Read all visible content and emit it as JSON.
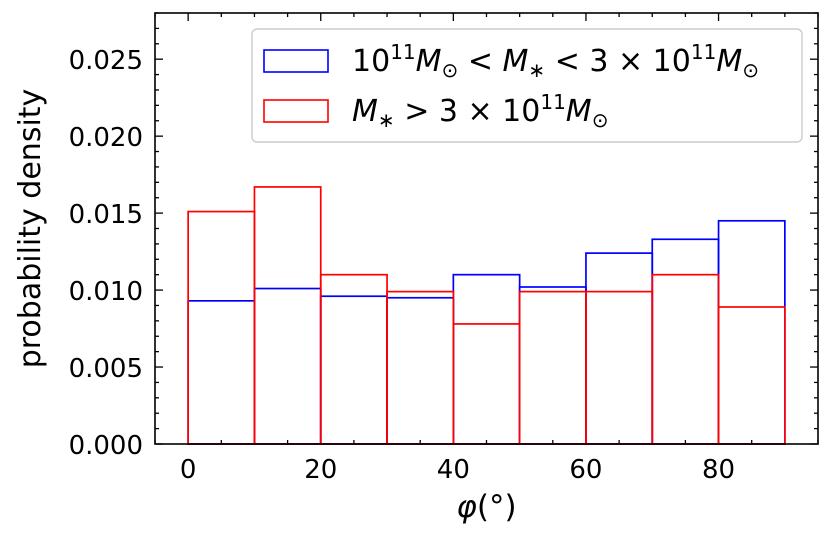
{
  "chart_data": {
    "type": "bar",
    "title": "",
    "xlabel": "φ(°)",
    "ylabel": "probability density",
    "xlim": [
      -5,
      95
    ],
    "ylim": [
      0,
      0.028
    ],
    "xticks": [
      0,
      20,
      40,
      60,
      80
    ],
    "xtick_labels": [
      "0",
      "20",
      "40",
      "60",
      "80"
    ],
    "yticks": [
      0.0,
      0.005,
      0.01,
      0.015,
      0.02,
      0.025
    ],
    "ytick_labels": [
      "0.000",
      "0.005",
      "0.010",
      "0.015",
      "0.020",
      "0.025"
    ],
    "bin_edges": [
      0,
      10,
      20,
      30,
      40,
      50,
      60,
      70,
      80,
      90
    ],
    "legend_position": "top-right",
    "series": [
      {
        "name": "10^11 M_⊙ < M_* < 3 × 10^11 M_⊙",
        "color": "#0000ff",
        "values": [
          0.0093,
          0.0101,
          0.0096,
          0.0095,
          0.011,
          0.0102,
          0.0124,
          0.0133,
          0.0145
        ]
      },
      {
        "name": "M_* > 3 × 10^11 M_⊙",
        "color": "#ff0000",
        "values": [
          0.0151,
          0.0167,
          0.011,
          0.0099,
          0.0078,
          0.0099,
          0.0099,
          0.011,
          0.0089
        ]
      }
    ]
  }
}
